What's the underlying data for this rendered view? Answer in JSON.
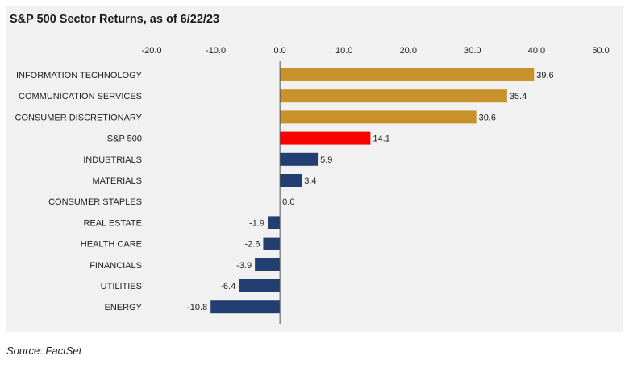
{
  "title": "S&P 500 Sector Returns, as of 6/22/23",
  "source": "Source: FactSet",
  "colors": {
    "background": "#f1f1f1",
    "sector": "#c8912b",
    "highlight": "#ff0000",
    "negative": "#233f72",
    "positive_lower": "#233f72",
    "axis": "#555555"
  },
  "chart_data": {
    "type": "bar",
    "orientation": "horizontal",
    "title": "S&P 500 Sector Returns, as of 6/22/23",
    "xlabel": "",
    "ylabel": "",
    "xlim": [
      -20,
      50
    ],
    "ticks": [
      -20,
      -10,
      0,
      10,
      20,
      30,
      40,
      50
    ],
    "tick_labels": [
      "-20.0",
      "-10.0",
      "0.0",
      "10.0",
      "20.0",
      "30.0",
      "40.0",
      "50.0"
    ],
    "axis_position": "top",
    "grid": false,
    "categories": [
      "INFORMATION TECHNOLOGY",
      "COMMUNICATION SERVICES",
      "CONSUMER DISCRETIONARY",
      "S&P 500",
      "INDUSTRIALS",
      "MATERIALS",
      "CONSUMER STAPLES",
      "REAL ESTATE",
      "HEALTH CARE",
      "FINANCIALS",
      "UTILITIES",
      "ENERGY"
    ],
    "values": [
      39.6,
      35.4,
      30.6,
      14.1,
      5.9,
      3.4,
      0.0,
      -1.9,
      -2.6,
      -3.9,
      -6.4,
      -10.8
    ],
    "value_labels": [
      "39.6",
      "35.4",
      "30.6",
      "14.1",
      "5.9",
      "3.4",
      "0.0",
      "-1.9",
      "-2.6",
      "-3.9",
      "-6.4",
      "-10.8"
    ],
    "bar_colors": [
      "#c8912b",
      "#c8912b",
      "#c8912b",
      "#ff0000",
      "#233f72",
      "#233f72",
      "#233f72",
      "#233f72",
      "#233f72",
      "#233f72",
      "#233f72",
      "#233f72"
    ]
  }
}
